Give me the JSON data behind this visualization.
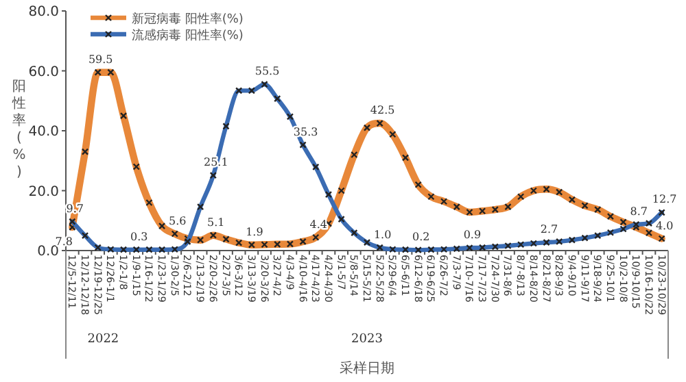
{
  "chart_data": {
    "type": "line",
    "xlabel": "采样日期",
    "ylabel": "阳性率(%)",
    "categories": [
      "12/5-12/11",
      "12/12-12/18",
      "12/19-12/25",
      "12/26-1/1",
      "1/2-1/8",
      "1/9-1/15",
      "1/16-1/22",
      "1/23-1/29",
      "1/30-2/5",
      "2/6-2/12",
      "2/13-2/19",
      "2/20-2/26",
      "2/27-3/5",
      "3/6-3/12",
      "3/13-3/19",
      "3/20-3/26",
      "3/27-4/2",
      "4/3-4/9",
      "4/10-4/16",
      "4/17-4/23",
      "4/24-4/30",
      "5/1-5/7",
      "5/8-5/14",
      "5/15-5/21",
      "5/22-5/28",
      "5/29-6/4",
      "6/5-6/11",
      "6/12-6/18",
      "6/19-6/25",
      "6/26-7/2",
      "7/3-7/9",
      "7/10-7/16",
      "7/17-7/23",
      "7/24-7/30",
      "7/31-8/6",
      "8/7-8/13",
      "8/14-8/20",
      "8/21-8/27",
      "8/28-9/3",
      "9/4-9/10",
      "9/11-9/17",
      "9/18-9/24",
      "9/25-10/1",
      "10/2-10/8",
      "10/9-10/15",
      "10/16-10/22",
      "10/23-10/29"
    ],
    "series": [
      {
        "name": "新冠病毒  阳性率(%)",
        "color": "#e8883a",
        "values": [
          7.8,
          33,
          59.5,
          59.5,
          45,
          28,
          16,
          8.2,
          5.6,
          4,
          3.5,
          5.1,
          3.8,
          2.6,
          1.9,
          2,
          2.1,
          2.2,
          3,
          4.4,
          9,
          20,
          32,
          41,
          42.5,
          38.8,
          31,
          22,
          18,
          16.4,
          14.6,
          12.8,
          13.2,
          13.7,
          14.6,
          18,
          20,
          20.5,
          19.5,
          17,
          15,
          13.7,
          11.4,
          9.5,
          7.8,
          5.9,
          4
        ],
        "value_labels": [
          "7.8",
          null,
          "59.5",
          null,
          null,
          null,
          null,
          null,
          "5.6",
          null,
          null,
          "5.1",
          null,
          null,
          "1.9",
          null,
          null,
          null,
          null,
          "4.4",
          null,
          null,
          null,
          null,
          "42.5",
          null,
          null,
          null,
          null,
          null,
          null,
          null,
          null,
          null,
          null,
          null,
          null,
          null,
          null,
          null,
          null,
          null,
          null,
          null,
          null,
          null,
          "4.0"
        ]
      },
      {
        "name": "流感病毒  阳性率(%)",
        "color": "#3b6cb3",
        "values": [
          9.7,
          5,
          1,
          0.4,
          0.3,
          0.3,
          0.3,
          0.3,
          0.4,
          3,
          14.6,
          25.1,
          41.5,
          53.4,
          53.4,
          55.5,
          50.7,
          44.7,
          35.3,
          27.9,
          18.7,
          10.5,
          5.9,
          2.7,
          1,
          0.4,
          0.3,
          0.2,
          0.3,
          0.4,
          0.6,
          0.9,
          1,
          1.3,
          1.6,
          2,
          2.4,
          2.7,
          3,
          3.5,
          4.2,
          5,
          6,
          7.2,
          8.7,
          9.1,
          12.7
        ],
        "value_labels": [
          "9.7",
          null,
          null,
          null,
          null,
          "0.3",
          null,
          null,
          null,
          null,
          null,
          "25.1",
          null,
          null,
          null,
          "55.5",
          null,
          null,
          "35.3",
          null,
          null,
          null,
          null,
          null,
          "1.0",
          null,
          null,
          "0.2",
          null,
          null,
          null,
          "0.9",
          null,
          null,
          null,
          null,
          null,
          "2.7",
          null,
          null,
          null,
          null,
          null,
          null,
          "8.7",
          null,
          "12.7"
        ]
      }
    ],
    "ylim": [
      0,
      80
    ],
    "yticks": [
      {
        "value": 0,
        "label": "0.0"
      },
      {
        "value": 20,
        "label": "20.0"
      },
      {
        "value": 40,
        "label": "40.0"
      },
      {
        "value": 60,
        "label": "60.0"
      },
      {
        "value": 80,
        "label": "80.0"
      }
    ],
    "marker": "cross",
    "grid": false,
    "legend": "top left",
    "annotations": [
      "2022",
      "2023"
    ]
  }
}
